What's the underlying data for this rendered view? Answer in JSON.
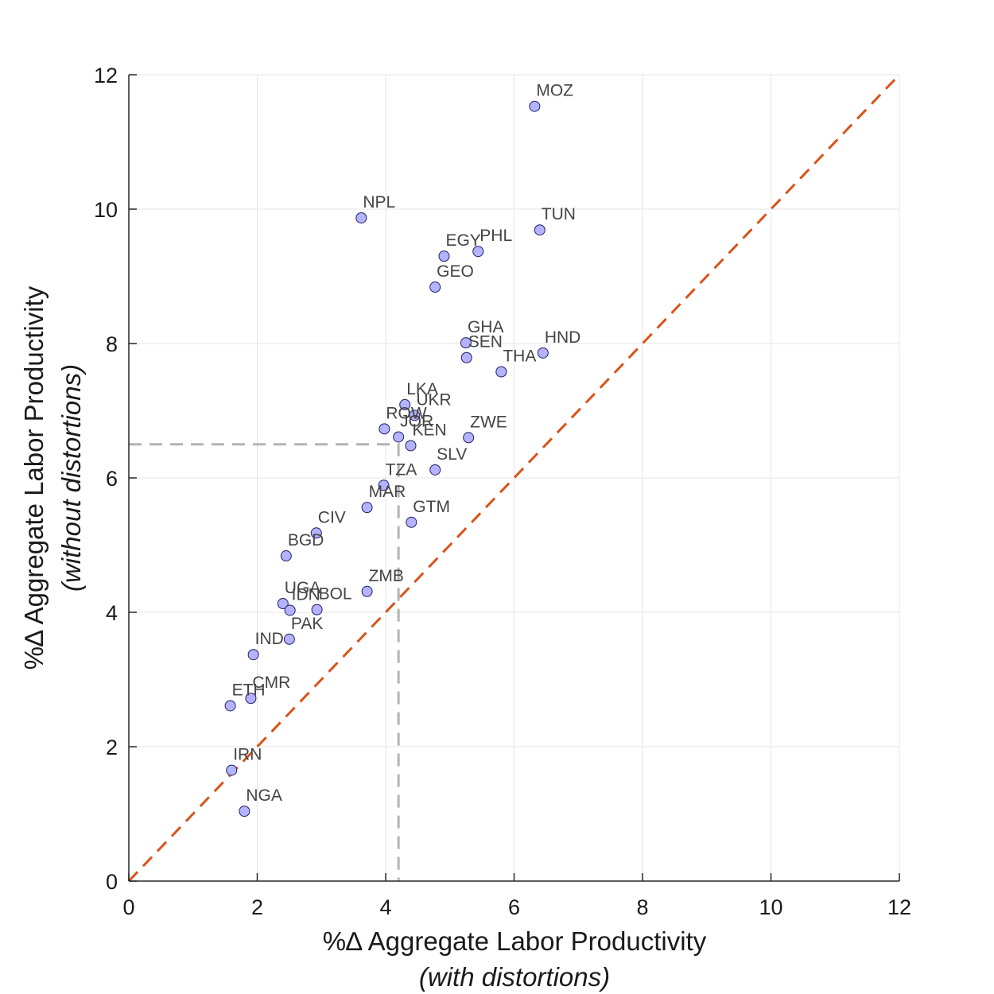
{
  "chart_data": {
    "type": "scatter",
    "title": "",
    "xlabel_main": "%∆ Aggregate Labor Productivity",
    "xlabel_sub": "(with distortions)",
    "ylabel_main": "%∆ Aggregate Labor Productivity",
    "ylabel_sub": "(without distortions)",
    "xlim": [
      0,
      12
    ],
    "ylim": [
      0,
      12
    ],
    "xticks": [
      "0",
      "2",
      "4",
      "6",
      "8",
      "10",
      "12"
    ],
    "yticks": [
      "0",
      "2",
      "4",
      "6",
      "8",
      "10",
      "12"
    ],
    "grid": true,
    "reference_line": {
      "type": "45-degree",
      "color": "#D95319",
      "style": "dashed"
    },
    "guide_point": {
      "x": 4.2,
      "y": 6.5,
      "color": "#b3b3b3",
      "style": "dashed"
    },
    "marker_color": "#b3b3ff",
    "points": [
      {
        "label": "MOZ",
        "x": 6.32,
        "y": 11.53
      },
      {
        "label": "NPL",
        "x": 3.62,
        "y": 9.87
      },
      {
        "label": "TUN",
        "x": 6.4,
        "y": 9.69
      },
      {
        "label": "EGY",
        "x": 4.91,
        "y": 9.3
      },
      {
        "label": "PHL",
        "x": 5.44,
        "y": 9.37
      },
      {
        "label": "GEO",
        "x": 4.77,
        "y": 8.84
      },
      {
        "label": "GHA",
        "x": 5.25,
        "y": 8.01
      },
      {
        "label": "HND",
        "x": 6.45,
        "y": 7.86
      },
      {
        "label": "SEN",
        "x": 5.26,
        "y": 7.79
      },
      {
        "label": "THA",
        "x": 5.8,
        "y": 7.58
      },
      {
        "label": "LKA",
        "x": 4.3,
        "y": 7.09
      },
      {
        "label": "UKR",
        "x": 4.45,
        "y": 6.93
      },
      {
        "label": "ROW",
        "x": 3.98,
        "y": 6.73
      },
      {
        "label": "JOR",
        "x": 4.2,
        "y": 6.61
      },
      {
        "label": "KEN",
        "x": 4.39,
        "y": 6.48
      },
      {
        "label": "ZWE",
        "x": 5.29,
        "y": 6.6
      },
      {
        "label": "SLV",
        "x": 4.77,
        "y": 6.12
      },
      {
        "label": "TZA",
        "x": 3.97,
        "y": 5.89
      },
      {
        "label": "MAR",
        "x": 3.71,
        "y": 5.56
      },
      {
        "label": "GTM",
        "x": 4.4,
        "y": 5.34
      },
      {
        "label": "CIV",
        "x": 2.92,
        "y": 5.18
      },
      {
        "label": "BGD",
        "x": 2.45,
        "y": 4.84
      },
      {
        "label": "ZMB",
        "x": 3.71,
        "y": 4.31
      },
      {
        "label": "UGA",
        "x": 2.4,
        "y": 4.13
      },
      {
        "label": "IDN",
        "x": 2.51,
        "y": 4.03
      },
      {
        "label": "BOL",
        "x": 2.93,
        "y": 4.04
      },
      {
        "label": "PAK",
        "x": 2.5,
        "y": 3.6
      },
      {
        "label": "IND",
        "x": 1.94,
        "y": 3.37
      },
      {
        "label": "CMR",
        "x": 1.9,
        "y": 2.72
      },
      {
        "label": "ETH",
        "x": 1.58,
        "y": 2.61
      },
      {
        "label": "IRN",
        "x": 1.6,
        "y": 1.65
      },
      {
        "label": "NGA",
        "x": 1.8,
        "y": 1.04
      }
    ]
  }
}
